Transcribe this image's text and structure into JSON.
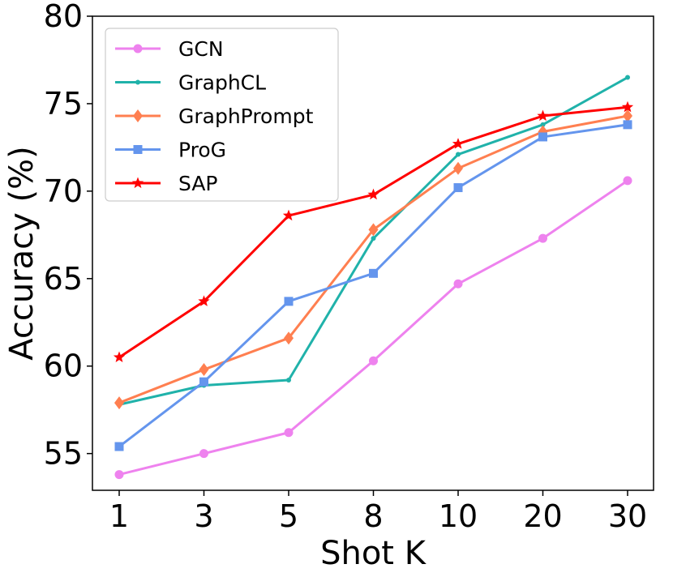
{
  "chart_data": {
    "type": "line",
    "title": "",
    "xlabel": "Shot K",
    "ylabel": "Accuracy (%)",
    "categories": [
      "1",
      "3",
      "5",
      "8",
      "10",
      "20",
      "30"
    ],
    "ylim": [
      52.9,
      80
    ],
    "yticks": [
      55,
      60,
      65,
      70,
      75,
      80
    ],
    "grid": false,
    "legend_position": "top-left",
    "series": [
      {
        "name": "GCN",
        "color": "#EE82EE",
        "marker": "circle",
        "values": [
          53.8,
          55.0,
          56.2,
          60.3,
          64.7,
          67.3,
          70.6
        ]
      },
      {
        "name": "GraphCL",
        "color": "#20B2AA",
        "marker": "point",
        "values": [
          57.8,
          58.9,
          59.2,
          67.3,
          72.1,
          73.8,
          76.5
        ]
      },
      {
        "name": "GraphPrompt",
        "color": "#FF7F50",
        "marker": "diamond",
        "values": [
          57.9,
          59.8,
          61.6,
          67.8,
          71.3,
          73.4,
          74.3
        ]
      },
      {
        "name": "ProG",
        "color": "#6495ED",
        "marker": "square",
        "values": [
          55.4,
          59.1,
          63.7,
          65.3,
          70.2,
          73.1,
          73.8
        ]
      },
      {
        "name": "SAP",
        "color": "#FF0000",
        "marker": "star",
        "values": [
          60.5,
          63.7,
          68.6,
          69.8,
          72.7,
          74.3,
          74.8
        ]
      }
    ]
  }
}
